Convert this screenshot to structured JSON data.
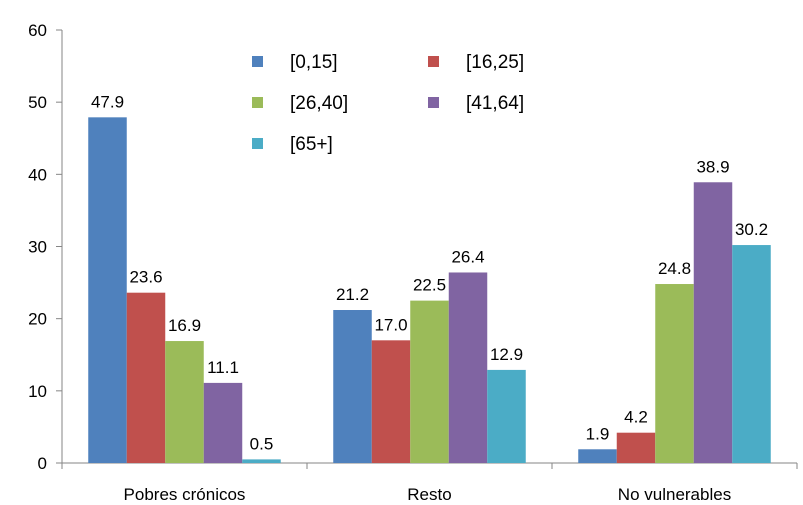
{
  "chart_data": {
    "type": "bar",
    "title": "",
    "xlabel": "",
    "ylabel": "",
    "ylim": [
      0,
      60
    ],
    "yticks": [
      0,
      10,
      20,
      30,
      40,
      50,
      60
    ],
    "grid": false,
    "legend_position": "top-center",
    "categories": [
      "Pobres crónicos",
      "Resto",
      "No vulnerables"
    ],
    "series": [
      {
        "name": "[0,15]",
        "color": "#4f81bd",
        "values": [
          47.9,
          21.2,
          1.9
        ]
      },
      {
        "name": "[16,25]",
        "color": "#c0504d",
        "values": [
          23.6,
          17.0,
          4.2
        ]
      },
      {
        "name": "[26,40]",
        "color": "#9bbb59",
        "values": [
          16.9,
          22.5,
          24.8
        ]
      },
      {
        "name": "[41,64]",
        "color": "#8064a2",
        "values": [
          11.1,
          26.4,
          38.9
        ]
      },
      {
        "name": "[65+]",
        "color": "#4bacc6",
        "values": [
          0.5,
          12.9,
          30.2
        ]
      }
    ]
  }
}
